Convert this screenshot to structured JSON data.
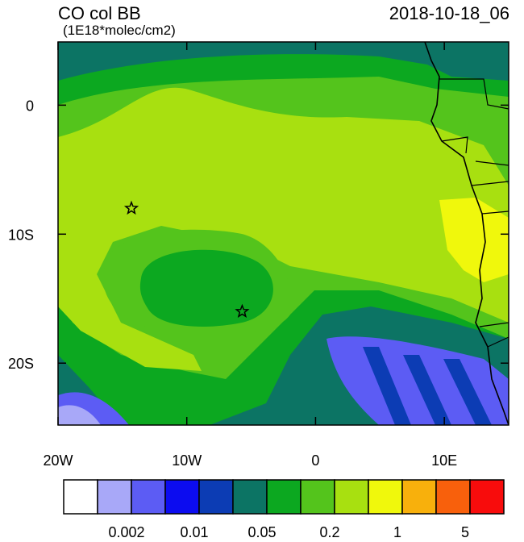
{
  "chart_data": {
    "type": "map",
    "title": "CO col BB",
    "subtitle": "(1E18*molec/cm2)",
    "date": "2018-10-18_06",
    "xlim": [
      -20,
      15
    ],
    "ylim": [
      -24.8,
      4.9
    ],
    "xticks": [
      {
        "value": -20,
        "label": "20W"
      },
      {
        "value": -10,
        "label": "10W"
      },
      0,
      {
        "value": 10,
        "label": "10E"
      }
    ],
    "yticks": [
      0,
      {
        "value": -10,
        "label": "10S"
      },
      {
        "value": -20,
        "label": "20S"
      }
    ],
    "markers": [
      {
        "lon": -14.3,
        "lat": -8
      },
      {
        "lon": -5.7,
        "lat": -16
      }
    ],
    "colorbar": {
      "colors": [
        "#ffffff",
        "#a8a8f8",
        "#5c5cf4",
        "#0c0cf0",
        "#0c3cb4",
        "#0c7464",
        "#0ca820",
        "#54c41c",
        "#a8e010",
        "#f0f80c",
        "#f8b00c",
        "#f8600c",
        "#f80c0c"
      ],
      "ticks": [
        0.002,
        0.01,
        0.05,
        0.2,
        1,
        5
      ]
    }
  }
}
